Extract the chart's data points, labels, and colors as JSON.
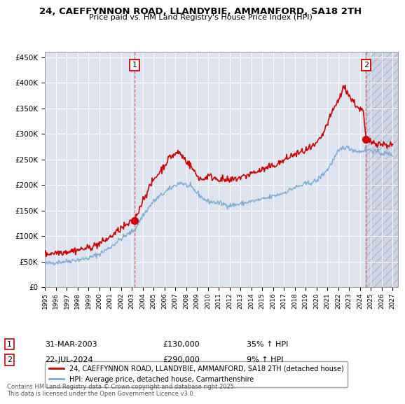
{
  "title": "24, CAEFFYNNON ROAD, LLANDYBIE, AMMANFORD, SA18 2TH",
  "subtitle": "Price paid vs. HM Land Registry's House Price Index (HPI)",
  "ylim": [
    0,
    460000
  ],
  "yticks": [
    0,
    50000,
    100000,
    150000,
    200000,
    250000,
    300000,
    350000,
    400000,
    450000
  ],
  "xlim_start": 1995.0,
  "xlim_end": 2027.5,
  "xticks": [
    1995,
    1996,
    1997,
    1998,
    1999,
    2000,
    2001,
    2002,
    2003,
    2004,
    2005,
    2006,
    2007,
    2008,
    2009,
    2010,
    2011,
    2012,
    2013,
    2014,
    2015,
    2016,
    2017,
    2018,
    2019,
    2020,
    2021,
    2022,
    2023,
    2024,
    2025,
    2026,
    2027
  ],
  "background_color": "#ffffff",
  "plot_bg_color": "#dde4f0",
  "grid_color": "#ffffff",
  "red_color": "#cc0000",
  "blue_color": "#7aaad0",
  "sale1_x": 2003.25,
  "sale1_y": 130000,
  "sale2_x": 2024.55,
  "sale2_y": 290000,
  "legend_red": "24, CAEFFYNNON ROAD, LLANDYBIE, AMMANFORD, SA18 2TH (detached house)",
  "legend_blue": "HPI: Average price, detached house, Carmarthenshire",
  "ann1_date": "31-MAR-2003",
  "ann1_price": "£130,000",
  "ann1_hpi": "35% ↑ HPI",
  "ann2_date": "22-JUL-2024",
  "ann2_price": "£290,000",
  "ann2_hpi": "9% ↑ HPI",
  "footnote": "Contains HM Land Registry data © Crown copyright and database right 2025.\nThis data is licensed under the Open Government Licence v3.0."
}
